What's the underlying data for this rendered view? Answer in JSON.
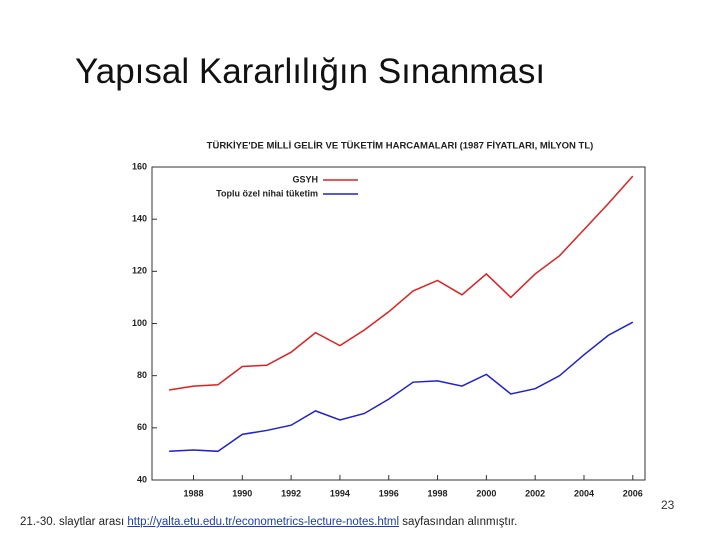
{
  "slide": {
    "title": "Yapısal Kararlılığın Sınanması",
    "page_number": "23",
    "footer": {
      "before": "21.-30. slaytlar arası",
      "link": "http://yalta.etu.edu.tr/econometrics-lecture-notes.html",
      "after": "sayfasından alınmıştır."
    }
  },
  "chart_data": {
    "type": "line",
    "title": "TÜRKİYE'DE MİLLİ GELİR VE TÜKETİM HARCAMALARI (1987 FİYATLARI, MİLYON TL)",
    "x": [
      1987,
      1988,
      1989,
      1990,
      1991,
      1992,
      1993,
      1994,
      1995,
      1996,
      1997,
      1998,
      1999,
      2000,
      2001,
      2002,
      2003,
      2004,
      2005,
      2006
    ],
    "series": [
      {
        "name": "GSYH",
        "color": "#e02020",
        "values": [
          74.5,
          76,
          76.5,
          83.5,
          84,
          89,
          96.5,
          91.5,
          97.5,
          104.5,
          112.5,
          116.5,
          111,
          119,
          110,
          119,
          126,
          136,
          146,
          156.5
        ]
      },
      {
        "name": "Toplu özel nihai tüketim",
        "color": "#2020d0",
        "values": [
          51,
          51.5,
          51,
          57.5,
          59,
          61,
          66.5,
          63,
          65.5,
          71,
          77.5,
          78,
          76,
          80.5,
          73,
          75,
          80,
          88,
          95.5,
          100.5
        ]
      }
    ],
    "xlim": [
      1986.3,
      2006.5
    ],
    "xticks": [
      1988,
      1990,
      1992,
      1994,
      1996,
      1998,
      2000,
      2002,
      2004,
      2006
    ],
    "ylim": [
      40,
      160
    ],
    "yticks": [
      40,
      60,
      80,
      100,
      120,
      140,
      160
    ],
    "grid": false,
    "legend": "upper left"
  }
}
